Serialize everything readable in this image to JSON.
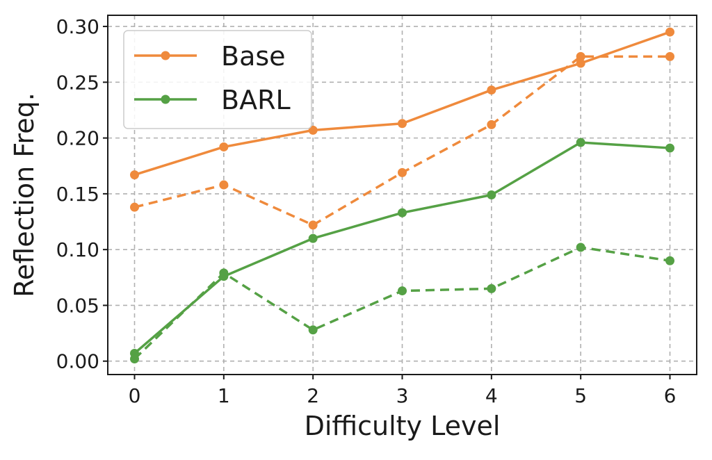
{
  "chart_data": {
    "type": "line",
    "title": "",
    "xlabel": "Difficulty Level",
    "ylabel": "Reflection Freq.",
    "x": [
      0,
      1,
      2,
      3,
      4,
      5,
      6
    ],
    "xticks": [
      "0",
      "1",
      "2",
      "3",
      "4",
      "5",
      "6"
    ],
    "yticks": [
      "0.00",
      "0.05",
      "0.10",
      "0.15",
      "0.20",
      "0.25",
      "0.30"
    ],
    "xlim": [
      -0.3,
      6.3
    ],
    "ylim": [
      -0.012,
      0.31
    ],
    "grid": true,
    "legend_position": "top-left",
    "legend": [
      {
        "label": "Base",
        "color": "#ef8a3c"
      },
      {
        "label": "BARL",
        "color": "#55a145"
      }
    ],
    "series": [
      {
        "group": "Base",
        "style": "solid",
        "color": "#ef8a3c",
        "values": [
          0.167,
          0.192,
          0.207,
          0.213,
          0.243,
          0.267,
          0.295
        ]
      },
      {
        "group": "Base",
        "style": "dashed",
        "color": "#ef8a3c",
        "values": [
          0.138,
          0.158,
          0.122,
          0.169,
          0.212,
          0.273,
          0.273
        ]
      },
      {
        "group": "BARL",
        "style": "solid",
        "color": "#55a145",
        "values": [
          0.007,
          0.076,
          0.11,
          0.133,
          0.149,
          0.196,
          0.191
        ]
      },
      {
        "group": "BARL",
        "style": "dashed",
        "color": "#55a145",
        "values": [
          0.002,
          0.079,
          0.028,
          0.063,
          0.065,
          0.102,
          0.09
        ]
      }
    ]
  }
}
